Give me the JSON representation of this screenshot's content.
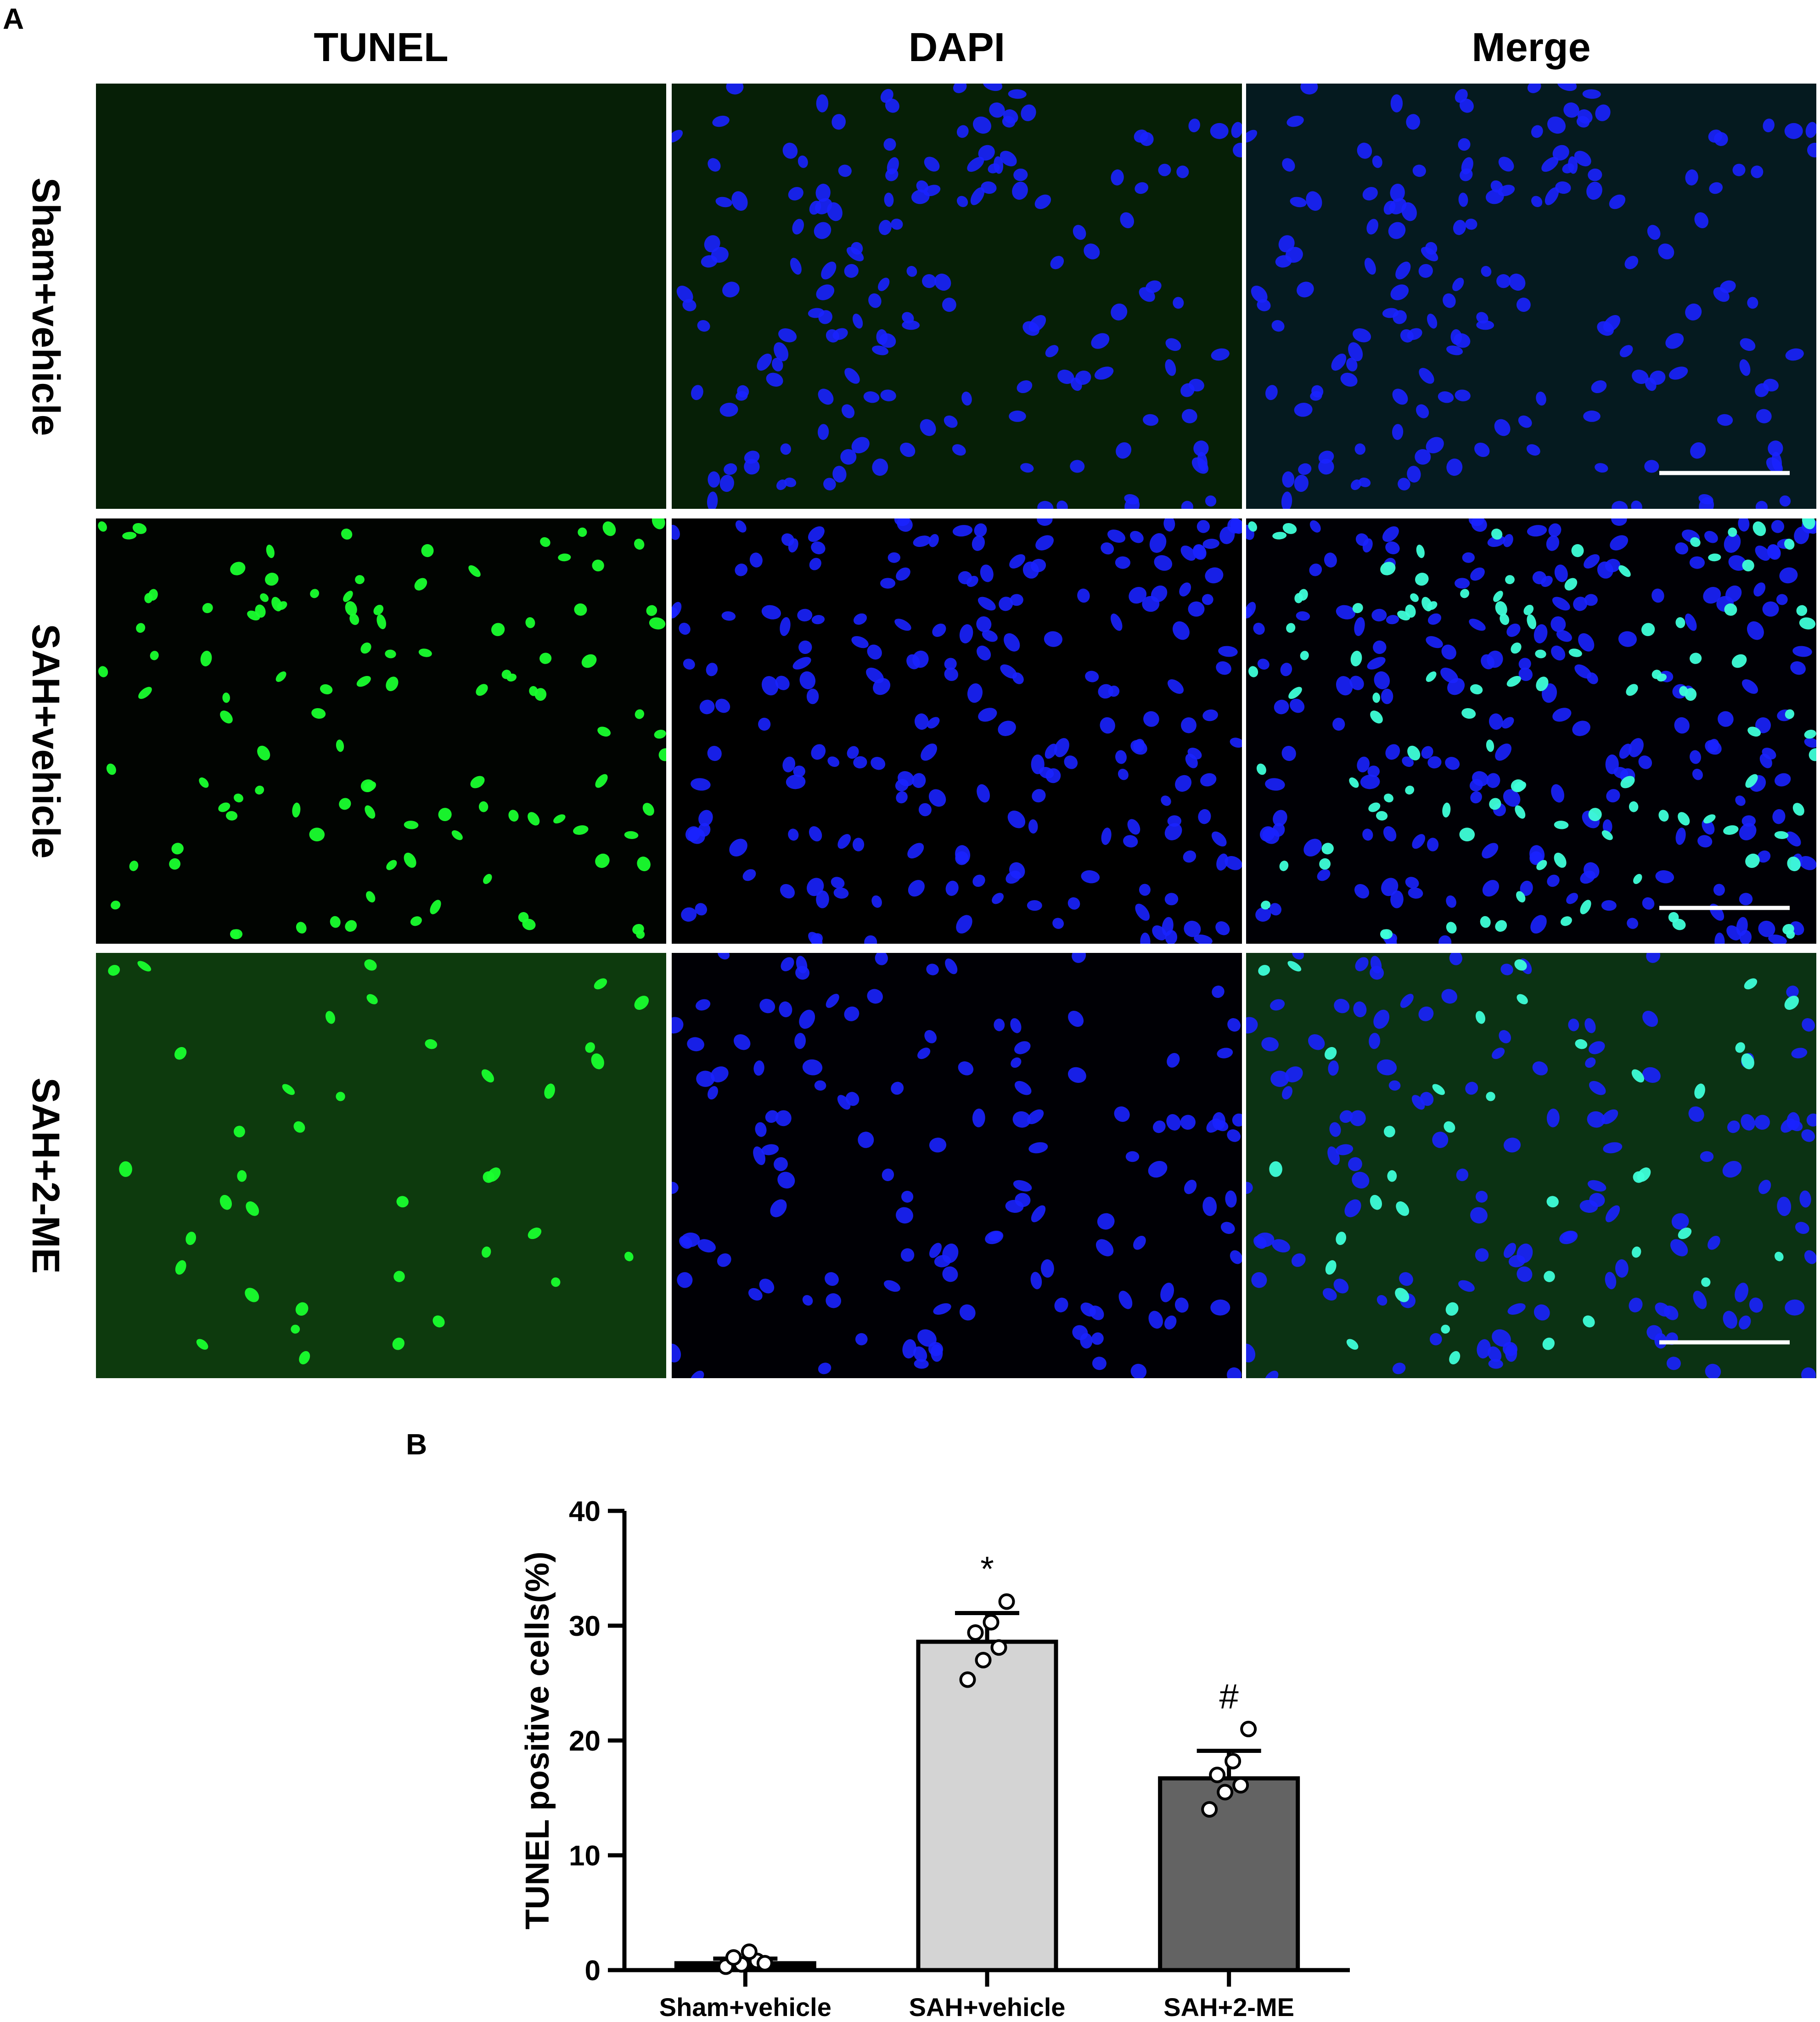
{
  "panel_a_label": "A",
  "panel_b_label": "B",
  "columns": [
    "TUNEL",
    "DAPI",
    "Merge"
  ],
  "rows": [
    "Sham+vehicle",
    "SAH+vehicle",
    "SAH+2-ME"
  ],
  "colors": {
    "tunel_green": "#19ff2e",
    "dapi_blue": "#1a22ff",
    "merge_cyan": "#3effd8"
  },
  "chart_data": {
    "type": "bar",
    "title": "",
    "xlabel": "",
    "ylabel": "TUNEL positive cells(%)",
    "ylim": [
      0,
      40
    ],
    "yticks": [
      0,
      10,
      20,
      30,
      40
    ],
    "categories": [
      "Sham+vehicle",
      "SAH+vehicle",
      "SAH+2-ME"
    ],
    "values": [
      0.6,
      28.6,
      16.7
    ],
    "errors": [
      0.4,
      2.5,
      2.4
    ],
    "bar_colors": [
      "#000000",
      "#d4d4d4",
      "#636363"
    ],
    "significance": [
      "",
      "*",
      "#"
    ],
    "points": [
      [
        0.3,
        0.5,
        0.8,
        1.1,
        1.6,
        0.6
      ],
      [
        25.3,
        27.0,
        28.1,
        29.4,
        30.3,
        32.1
      ],
      [
        14.0,
        15.5,
        16.1,
        17.0,
        18.2,
        21.0
      ]
    ]
  }
}
